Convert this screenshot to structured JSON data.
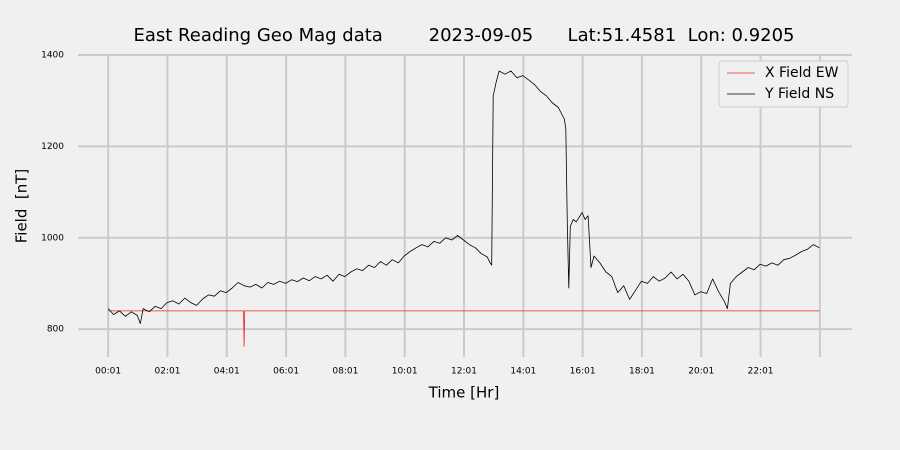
{
  "chart_data": {
    "type": "line",
    "title": "East Reading Geo Mag data        2023-09-05      Lat:51.4581  Lon: 0.9205",
    "x_label": "Time  [Hr]",
    "y_label": "Field  [nT]",
    "xlim": [
      -1.0,
      25.1
    ],
    "ylim": [
      739,
      1400
    ],
    "xticks": [
      {
        "value": 0.0167,
        "label": "00:01"
      },
      {
        "value": 2.0167,
        "label": "02:01"
      },
      {
        "value": 4.0167,
        "label": "04:01"
      },
      {
        "value": 6.0167,
        "label": "06:01"
      },
      {
        "value": 8.0167,
        "label": "08:01"
      },
      {
        "value": 10.0167,
        "label": "10:01"
      },
      {
        "value": 12.0167,
        "label": "12:01"
      },
      {
        "value": 14.0167,
        "label": "14:01"
      },
      {
        "value": 16.0167,
        "label": "16:01"
      },
      {
        "value": 18.0167,
        "label": "18:01"
      },
      {
        "value": 20.0167,
        "label": "20:01"
      },
      {
        "value": 22.0167,
        "label": "22:01"
      },
      {
        "value": 24.0167,
        "label": null
      }
    ],
    "yticks": [
      800,
      1000,
      1200,
      1400
    ],
    "grid": true,
    "legend": "upper right",
    "series": [
      {
        "name": "X Field EW",
        "color": "#e8282a",
        "x": [
          0.02,
          4.58,
          4.6,
          4.62,
          24.0
        ],
        "values": [
          840,
          840,
          762,
          840,
          840
        ]
      },
      {
        "name": "Y Field NS",
        "color": "#000000",
        "x": [
          0.02,
          0.2,
          0.4,
          0.6,
          0.8,
          1.0,
          1.1,
          1.2,
          1.4,
          1.6,
          1.8,
          2.0,
          2.2,
          2.4,
          2.6,
          2.8,
          3.0,
          3.2,
          3.4,
          3.6,
          3.8,
          4.0,
          4.2,
          4.4,
          4.6,
          4.8,
          5.0,
          5.2,
          5.4,
          5.6,
          5.8,
          6.0,
          6.2,
          6.4,
          6.6,
          6.8,
          7.0,
          7.2,
          7.4,
          7.6,
          7.8,
          8.0,
          8.2,
          8.4,
          8.6,
          8.8,
          9.0,
          9.2,
          9.4,
          9.6,
          9.8,
          10.0,
          10.2,
          10.4,
          10.6,
          10.8,
          11.0,
          11.2,
          11.4,
          11.6,
          11.8,
          12.0,
          12.2,
          12.4,
          12.6,
          12.8,
          12.9,
          12.95,
          13.0,
          13.1,
          13.2,
          13.4,
          13.6,
          13.8,
          14.0,
          14.2,
          14.4,
          14.6,
          14.8,
          15.0,
          15.2,
          15.3,
          15.4,
          15.45,
          15.5,
          15.55,
          15.6,
          15.7,
          15.8,
          16.0,
          16.1,
          16.2,
          16.3,
          16.4,
          16.6,
          16.8,
          17.0,
          17.2,
          17.4,
          17.6,
          17.8,
          18.0,
          18.2,
          18.4,
          18.6,
          18.8,
          19.0,
          19.2,
          19.4,
          19.6,
          19.8,
          20.0,
          20.2,
          20.4,
          20.6,
          20.8,
          20.9,
          21.0,
          21.2,
          21.4,
          21.6,
          21.8,
          22.0,
          22.2,
          22.4,
          22.6,
          22.8,
          23.0,
          23.2,
          23.4,
          23.6,
          23.8,
          24.0
        ],
        "values": [
          845,
          832,
          840,
          828,
          838,
          830,
          812,
          845,
          838,
          850,
          845,
          858,
          862,
          855,
          868,
          858,
          852,
          866,
          875,
          872,
          884,
          880,
          890,
          902,
          895,
          892,
          898,
          890,
          902,
          898,
          905,
          900,
          908,
          904,
          912,
          906,
          915,
          910,
          918,
          905,
          920,
          915,
          925,
          932,
          928,
          940,
          935,
          948,
          940,
          952,
          945,
          960,
          970,
          978,
          985,
          980,
          992,
          988,
          1000,
          995,
          1005,
          995,
          985,
          978,
          965,
          958,
          945,
          940,
          1310,
          1340,
          1365,
          1358,
          1365,
          1350,
          1355,
          1345,
          1335,
          1320,
          1310,
          1295,
          1285,
          1272,
          1260,
          1240,
          1030,
          890,
          1025,
          1040,
          1035,
          1055,
          1040,
          1048,
          935,
          960,
          945,
          925,
          915,
          880,
          895,
          865,
          885,
          905,
          900,
          915,
          905,
          912,
          925,
          910,
          920,
          905,
          875,
          882,
          878,
          910,
          882,
          860,
          845,
          900,
          915,
          925,
          935,
          930,
          942,
          938,
          945,
          940,
          952,
          955,
          962,
          970,
          975,
          985,
          978
        ]
      }
    ]
  }
}
